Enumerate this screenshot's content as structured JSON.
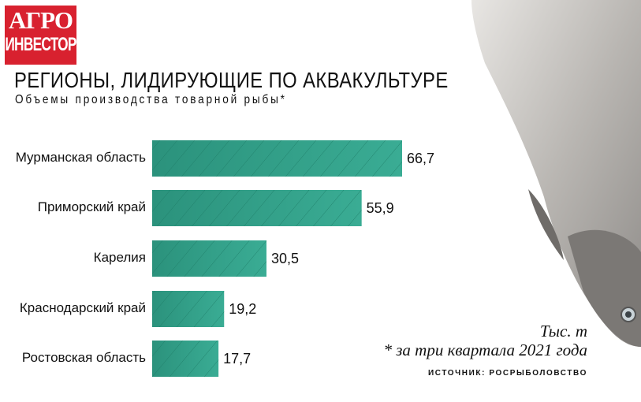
{
  "logo": {
    "line1": "АГРО",
    "line2": "ИНВЕСТОР"
  },
  "colors": {
    "bar": "#2f9e87",
    "logo": "#d8212f"
  },
  "chart_data": {
    "type": "bar",
    "orientation": "horizontal",
    "title": "РЕГИОНЫ, ЛИДИРУЮЩИЕ ПО АКВАКУЛЬТУРЕ",
    "subtitle": "Объемы производства товарной рыбы*",
    "categories": [
      "Мурманская область",
      "Приморский край",
      "Карелия",
      "Краснодарский край",
      "Ростовская область"
    ],
    "values": [
      66.7,
      55.9,
      30.5,
      19.2,
      17.7
    ],
    "value_labels": [
      "66,7",
      "55,9",
      "30,5",
      "19,2",
      "17,7"
    ],
    "unit": "Тыс. т",
    "note": "* за три квартала 2021 года",
    "source": "ИСТОЧНИК: РОСРЫБОЛОВСТВО",
    "xlim": [
      0,
      70
    ]
  }
}
